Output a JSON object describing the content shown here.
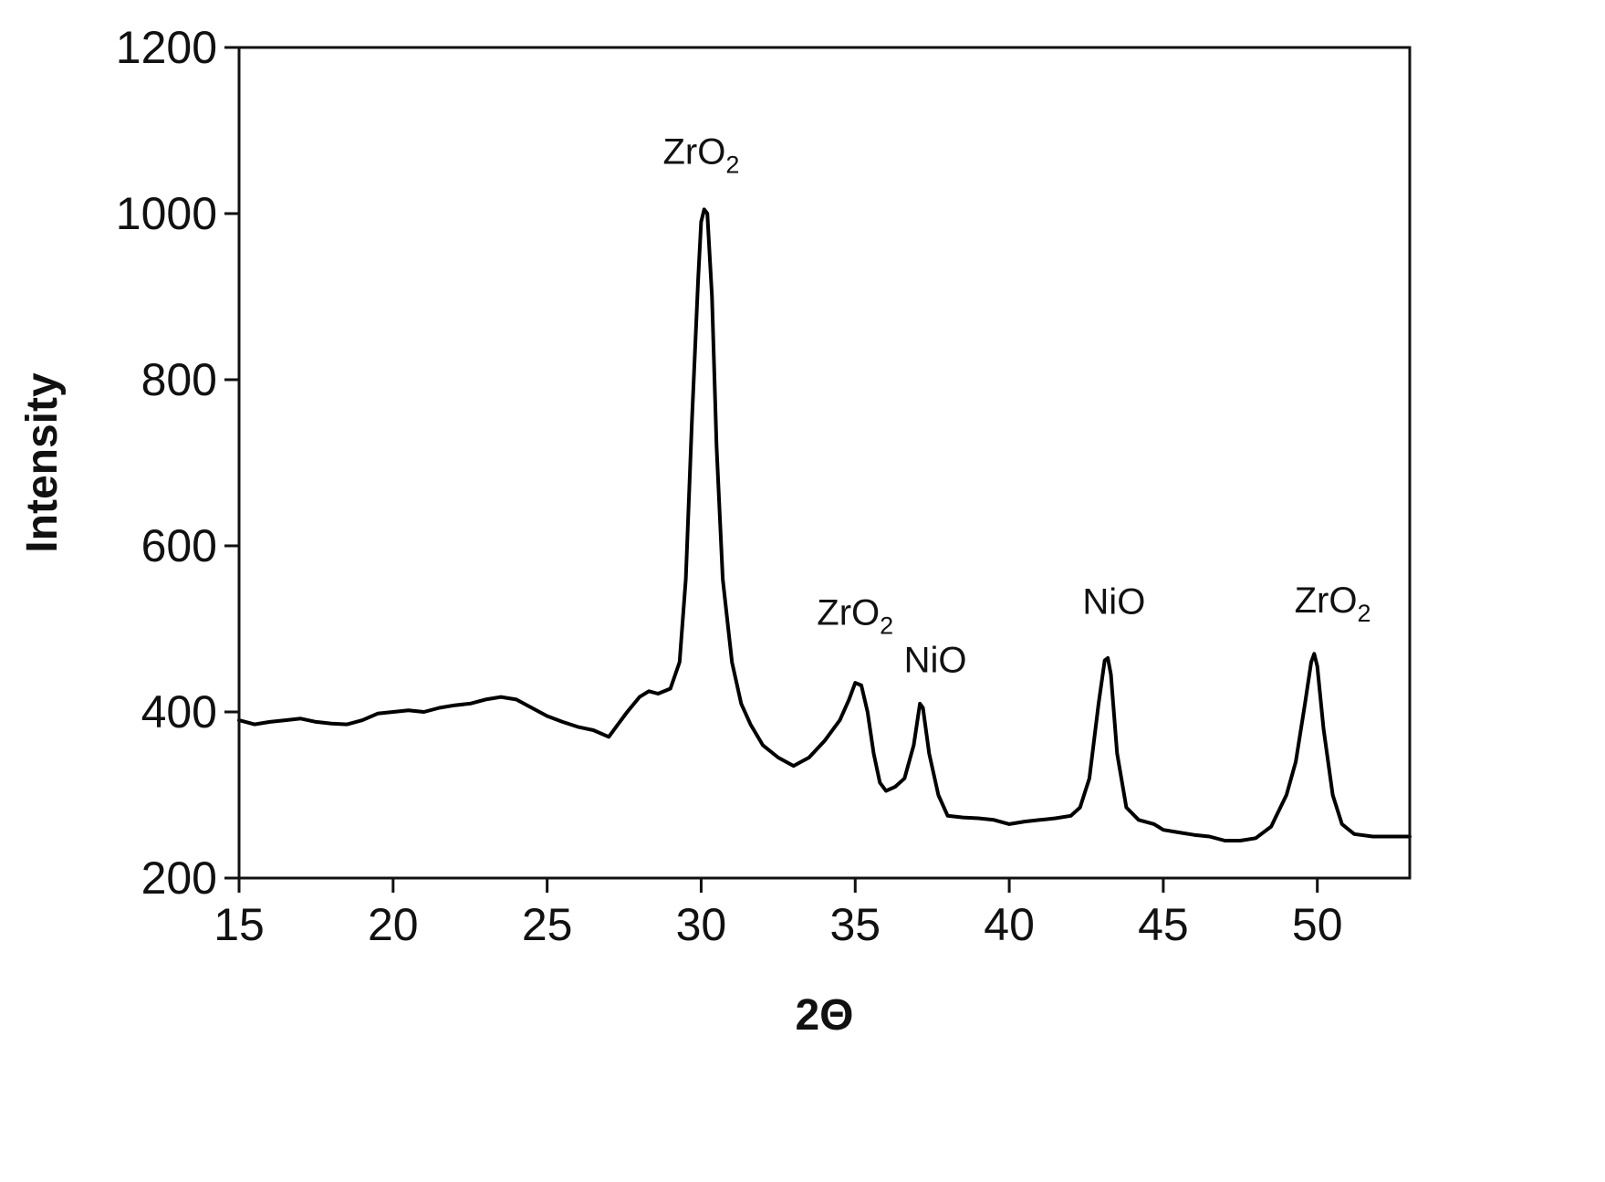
{
  "chart_data": {
    "type": "line",
    "title": "",
    "xlabel": "2Θ",
    "ylabel": "Intensity",
    "xlim": [
      15,
      53
    ],
    "ylim": [
      200,
      1200
    ],
    "xticks": [
      15,
      20,
      25,
      30,
      35,
      40,
      45,
      50
    ],
    "yticks": [
      200,
      400,
      600,
      800,
      1000,
      1200
    ],
    "grid": false,
    "legend": "none",
    "line_color": "#000000",
    "series": [
      {
        "x": [
          15.0,
          15.5,
          16.0,
          16.5,
          17.0,
          17.5,
          18.0,
          18.5,
          19.0,
          19.5,
          20.0,
          20.5,
          21.0,
          21.5,
          22.0,
          22.5,
          23.0,
          23.5,
          24.0,
          24.5,
          25.0,
          25.5,
          26.0,
          26.5,
          27.0,
          27.3,
          27.6,
          28.0,
          28.3,
          28.6,
          29.0,
          29.3,
          29.5,
          29.7,
          29.9,
          30.0,
          30.1,
          30.2,
          30.35,
          30.5,
          30.7,
          31.0,
          31.3,
          31.6,
          32.0,
          32.5,
          33.0,
          33.5,
          34.0,
          34.5,
          34.8,
          35.0,
          35.2,
          35.4,
          35.6,
          35.8,
          36.0,
          36.3,
          36.6,
          36.9,
          37.1,
          37.2,
          37.4,
          37.7,
          38.0,
          38.5,
          39.0,
          39.5,
          40.0,
          40.5,
          41.0,
          41.5,
          42.0,
          42.3,
          42.6,
          42.9,
          43.1,
          43.2,
          43.3,
          43.5,
          43.8,
          44.2,
          44.7,
          45.0,
          45.5,
          46.0,
          46.5,
          47.0,
          47.5,
          48.0,
          48.5,
          49.0,
          49.3,
          49.6,
          49.8,
          49.9,
          50.0,
          50.2,
          50.5,
          50.8,
          51.2,
          51.8,
          52.3,
          53.0
        ],
        "values": [
          390,
          385,
          388,
          390,
          392,
          388,
          386,
          385,
          390,
          398,
          400,
          402,
          400,
          405,
          408,
          410,
          415,
          418,
          415,
          405,
          395,
          388,
          382,
          378,
          370,
          385,
          400,
          418,
          425,
          422,
          428,
          460,
          560,
          750,
          920,
          990,
          1005,
          1000,
          900,
          720,
          560,
          460,
          410,
          385,
          360,
          345,
          335,
          345,
          365,
          390,
          415,
          435,
          432,
          400,
          350,
          315,
          305,
          310,
          320,
          360,
          410,
          405,
          350,
          300,
          275,
          273,
          272,
          270,
          265,
          268,
          270,
          272,
          275,
          285,
          320,
          410,
          462,
          465,
          445,
          350,
          285,
          270,
          265,
          258,
          255,
          252,
          250,
          245,
          245,
          248,
          262,
          300,
          340,
          410,
          460,
          470,
          455,
          380,
          300,
          265,
          253,
          250,
          250,
          250
        ]
      }
    ],
    "annotations": [
      {
        "main": "ZrO",
        "sub": "2",
        "x": 30.0,
        "y": 1060
      },
      {
        "main": "ZrO",
        "sub": "2",
        "x": 35.0,
        "y": 505
      },
      {
        "main": "NiO",
        "sub": "",
        "x": 37.6,
        "y": 448
      },
      {
        "main": "NiO",
        "sub": "",
        "x": 43.4,
        "y": 518
      },
      {
        "main": "ZrO",
        "sub": "2",
        "x": 50.5,
        "y": 520
      }
    ]
  }
}
